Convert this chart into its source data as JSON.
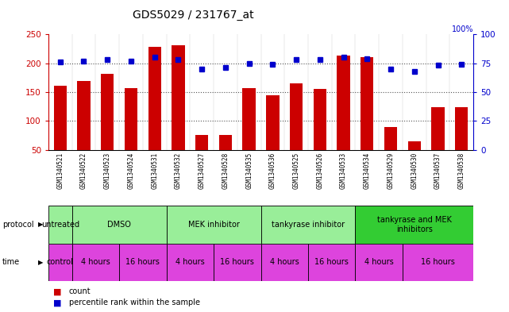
{
  "title": "GDS5029 / 231767_at",
  "samples": [
    "GSM1340521",
    "GSM1340522",
    "GSM1340523",
    "GSM1340524",
    "GSM1340531",
    "GSM1340532",
    "GSM1340527",
    "GSM1340528",
    "GSM1340535",
    "GSM1340536",
    "GSM1340525",
    "GSM1340526",
    "GSM1340533",
    "GSM1340534",
    "GSM1340529",
    "GSM1340530",
    "GSM1340537",
    "GSM1340538"
  ],
  "counts": [
    161,
    169,
    181,
    157,
    228,
    231,
    76,
    76,
    157,
    144,
    165,
    155,
    213,
    210,
    89,
    65,
    124,
    124
  ],
  "percentiles": [
    76,
    77,
    78,
    77,
    80,
    78,
    70,
    71,
    75,
    74,
    78,
    78,
    80,
    79,
    70,
    68,
    73,
    74
  ],
  "bar_color": "#cc0000",
  "dot_color": "#0000cc",
  "ylim_left": [
    50,
    250
  ],
  "ylim_right": [
    0,
    100
  ],
  "yticks_left": [
    50,
    100,
    150,
    200,
    250
  ],
  "yticks_right": [
    0,
    25,
    50,
    75,
    100
  ],
  "dotted_line_values": [
    100,
    150,
    200
  ],
  "sample_bg_color": "#cccccc",
  "protocol_light_color": "#99ee99",
  "protocol_dark_color": "#33cc33",
  "time_color": "#dd44dd",
  "border_color": "#000000",
  "protocol_groups": [
    {
      "label": "untreated",
      "start": 0,
      "end": 1,
      "dark": false
    },
    {
      "label": "DMSO",
      "start": 1,
      "end": 5,
      "dark": false
    },
    {
      "label": "MEK inhibitor",
      "start": 5,
      "end": 9,
      "dark": false
    },
    {
      "label": "tankyrase inhibitor",
      "start": 9,
      "end": 13,
      "dark": false
    },
    {
      "label": "tankyrase and MEK\ninhibitors",
      "start": 13,
      "end": 18,
      "dark": true
    }
  ],
  "time_groups": [
    {
      "label": "control",
      "start": 0,
      "end": 1
    },
    {
      "label": "4 hours",
      "start": 1,
      "end": 3
    },
    {
      "label": "16 hours",
      "start": 3,
      "end": 5
    },
    {
      "label": "4 hours",
      "start": 5,
      "end": 7
    },
    {
      "label": "16 hours",
      "start": 7,
      "end": 9
    },
    {
      "label": "4 hours",
      "start": 9,
      "end": 11
    },
    {
      "label": "16 hours",
      "start": 11,
      "end": 13
    },
    {
      "label": "4 hours",
      "start": 13,
      "end": 15
    },
    {
      "label": "16 hours",
      "start": 15,
      "end": 18
    }
  ]
}
